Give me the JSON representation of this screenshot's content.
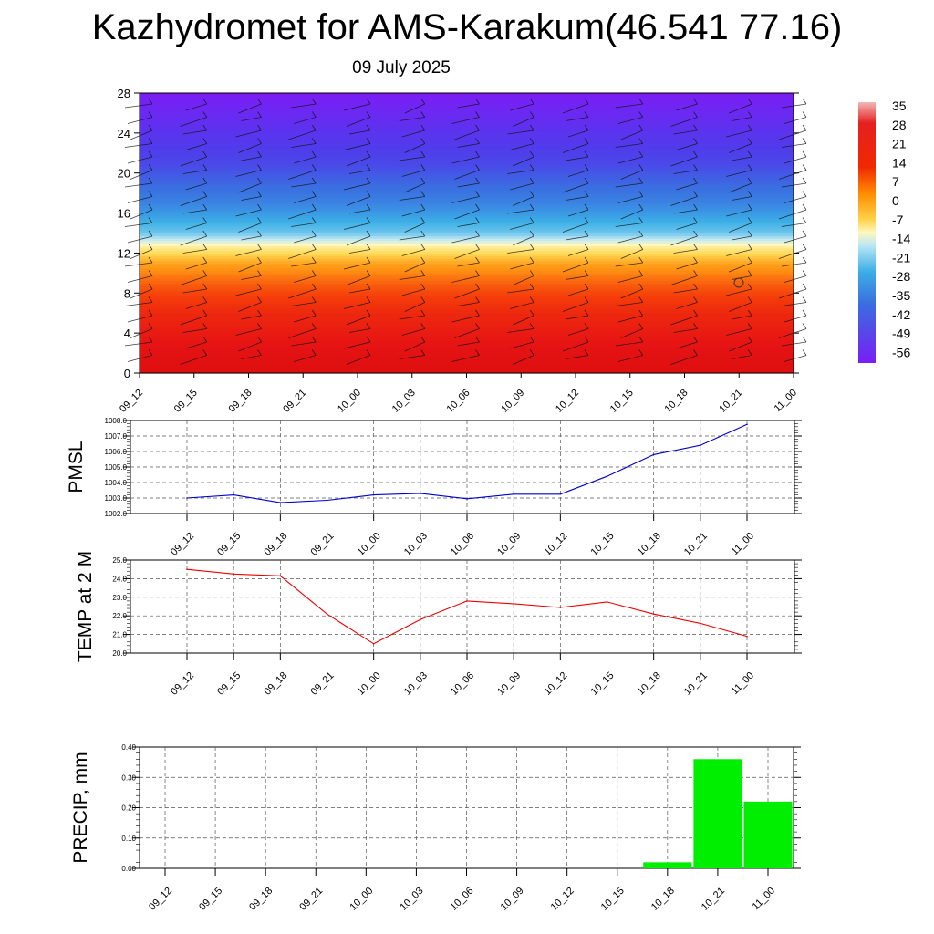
{
  "title": "Kazhydromet for AMS-Karakum(46.541 77.16)",
  "subtitle": "09 July 2025",
  "chart_data": [
    {
      "type": "heatmap",
      "name": "cross-section",
      "x": [
        "09_12",
        "09_15",
        "09_18",
        "09_21",
        "10_00",
        "10_03",
        "10_06",
        "10_09",
        "10_12",
        "10_15",
        "10_18",
        "10_21",
        "11_00"
      ],
      "y_ticks": [
        0,
        4,
        8,
        12,
        16,
        20,
        24,
        28
      ],
      "ylim": [
        0,
        28
      ],
      "profile": [
        {
          "h": 0,
          "t": 33
        },
        {
          "h": 3,
          "t": 30
        },
        {
          "h": 6,
          "t": 25
        },
        {
          "h": 9,
          "t": 16
        },
        {
          "h": 11,
          "t": 8
        },
        {
          "h": 12.5,
          "t": -5
        },
        {
          "h": 14,
          "t": -25
        },
        {
          "h": 17,
          "t": -38
        },
        {
          "h": 21,
          "t": -48
        },
        {
          "h": 24,
          "t": -52
        },
        {
          "h": 28,
          "t": -58
        }
      ],
      "colorbar": {
        "labels": [
          "35",
          "28",
          "21",
          "14",
          "7",
          "0",
          "-7",
          "-14",
          "-21",
          "-28",
          "-35",
          "-42",
          "-49",
          "-56"
        ]
      }
    },
    {
      "type": "line",
      "name": "pmsl",
      "ylabel": "PMSL",
      "categories": [
        "09_12",
        "09_15",
        "09_18",
        "09_21",
        "10_00",
        "10_03",
        "10_06",
        "10_09",
        "10_12",
        "10_15",
        "10_18",
        "10_21",
        "11_00"
      ],
      "values": [
        1003.0,
        1003.2,
        1002.7,
        1002.85,
        1003.2,
        1003.3,
        1002.95,
        1003.25,
        1003.25,
        1004.4,
        1005.8,
        1006.4,
        1007.75
      ],
      "ylim": [
        1002.0,
        1008.0
      ],
      "yticks": [
        "1002.0",
        "1003.0",
        "1004.0",
        "1005.0",
        "1006.0",
        "1007.0",
        "1008.0"
      ],
      "color": "#0000cc"
    },
    {
      "type": "line",
      "name": "temp",
      "ylabel": "TEMP at 2 M",
      "categories": [
        "09_12",
        "09_15",
        "09_18",
        "09_21",
        "10_00",
        "10_03",
        "10_06",
        "10_09",
        "10_12",
        "10_15",
        "10_18",
        "10_21",
        "11_00"
      ],
      "values": [
        24.5,
        24.25,
        24.15,
        22.1,
        20.5,
        21.8,
        22.8,
        22.65,
        22.45,
        22.75,
        22.1,
        21.6,
        20.9
      ],
      "ylim": [
        20.0,
        25.0
      ],
      "yticks": [
        "20.0",
        "21.0",
        "22.0",
        "23.0",
        "24.0",
        "25.0"
      ],
      "color": "#ee0000"
    },
    {
      "type": "bar",
      "name": "precip",
      "ylabel": "PRECIP, mm",
      "categories": [
        "09_12",
        "09_15",
        "09_18",
        "09_21",
        "10_00",
        "10_03",
        "10_06",
        "10_09",
        "10_12",
        "10_15",
        "10_18",
        "10_21",
        "11_00"
      ],
      "values": [
        0,
        0,
        0,
        0,
        0,
        0,
        0,
        0,
        0,
        0,
        0.02,
        0.36,
        0.22
      ],
      "ylim": [
        0,
        0.4
      ],
      "yticks": [
        "0.00",
        "0.10",
        "0.20",
        "0.30",
        "0.40"
      ],
      "color": "#00ee00"
    }
  ]
}
